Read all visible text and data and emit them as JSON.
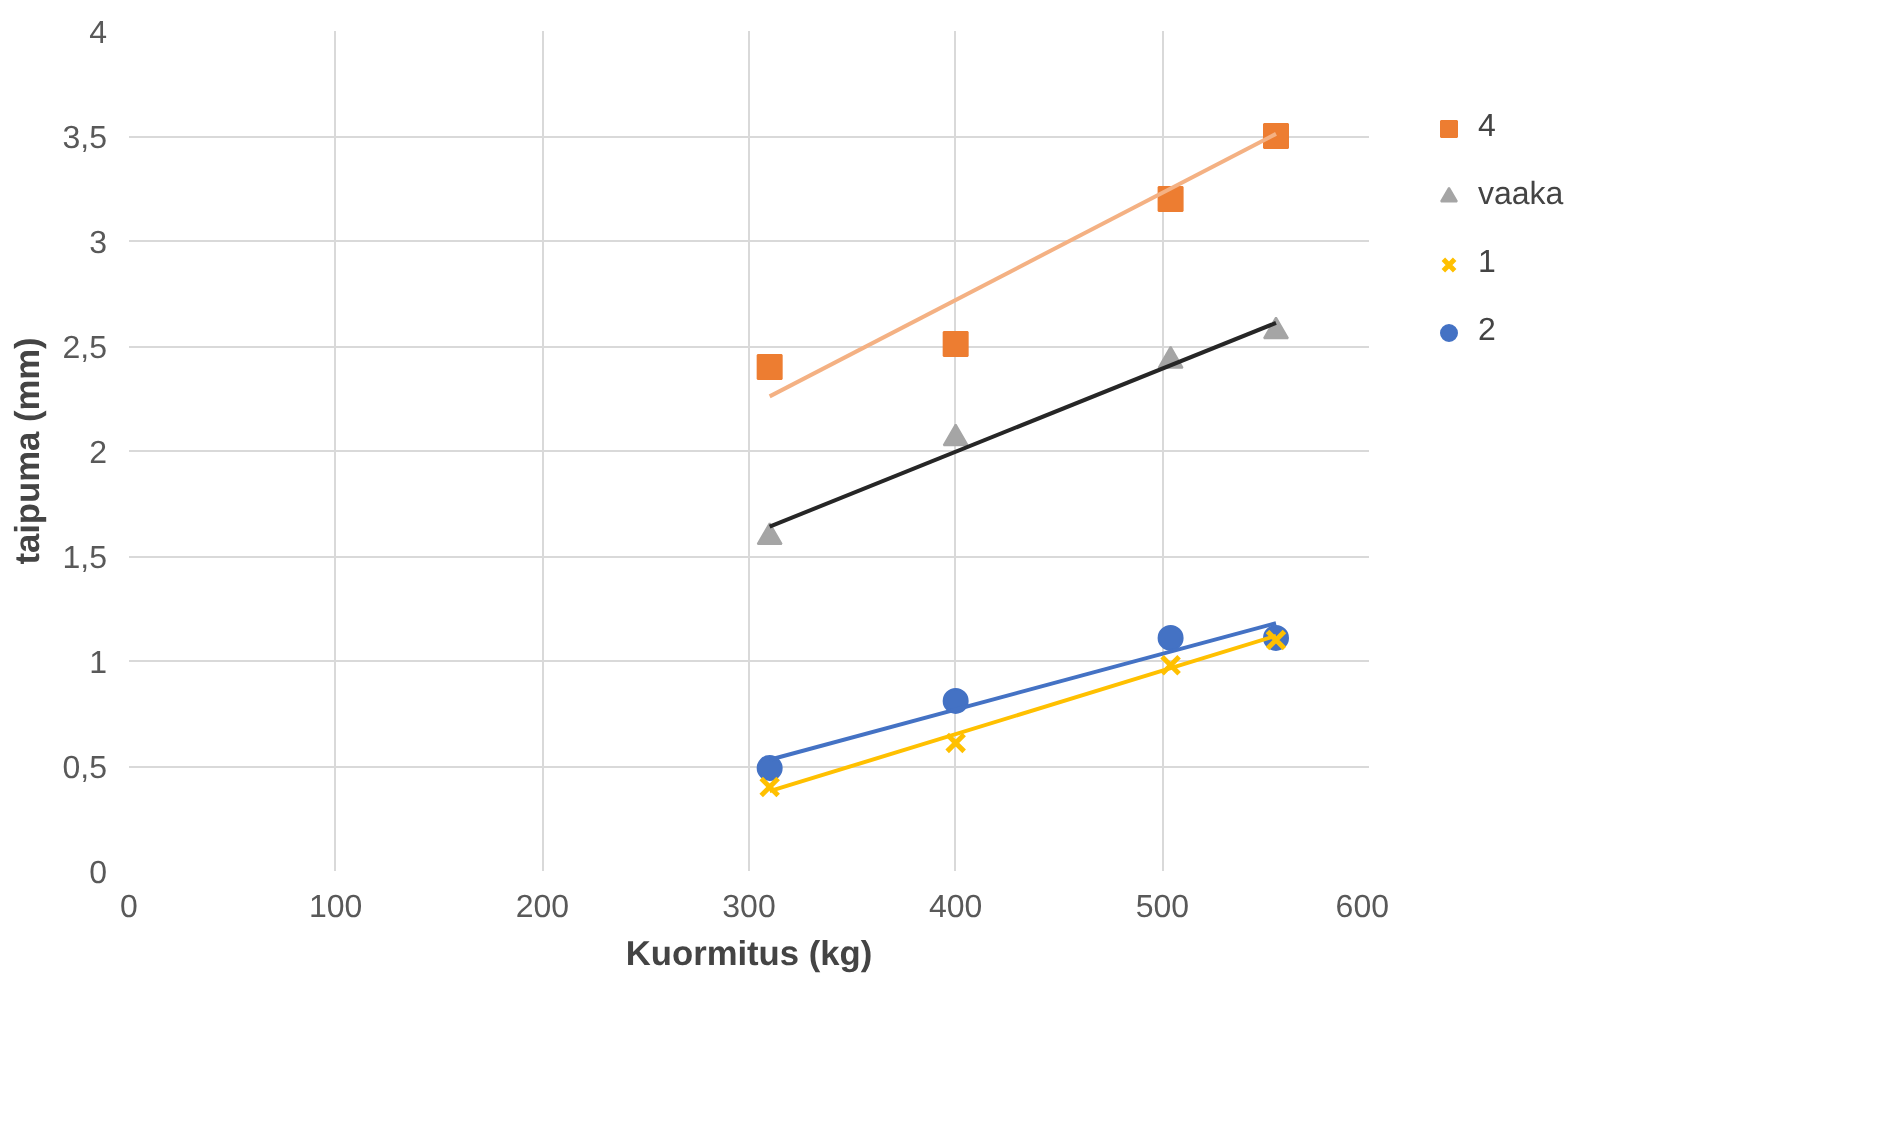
{
  "chart_data": {
    "type": "scatter",
    "xlabel": "Kuormitus (kg)",
    "ylabel": "taipuma (mm)",
    "xlim": [
      0,
      600
    ],
    "xticks": [
      0,
      100,
      200,
      300,
      400,
      500,
      600
    ],
    "ylim": [
      0,
      4
    ],
    "yticks": [
      0,
      {
        "value": 0.5,
        "label": "0,5"
      },
      1,
      {
        "value": 1.5,
        "label": "1,5"
      },
      2,
      {
        "value": 2.5,
        "label": "2,5"
      },
      3,
      {
        "value": 3.5,
        "label": "3,5"
      },
      4
    ],
    "grid": true,
    "legend": "right",
    "series": [
      {
        "name": "4",
        "color": "#ed7d31",
        "marker": "square",
        "x": [
          310,
          400,
          504,
          555
        ],
        "values": [
          2.4,
          2.51,
          3.2,
          3.5
        ]
      },
      {
        "name": "vaaka",
        "color": "#a5a5a5",
        "marker": "triangle",
        "x": [
          310,
          400,
          504,
          555
        ],
        "values": [
          1.59,
          2.06,
          2.43,
          2.57
        ]
      },
      {
        "name": "1",
        "color": "#ffc000",
        "marker": "cross",
        "x": [
          310,
          400,
          504,
          555
        ],
        "values": [
          0.4,
          0.61,
          0.98,
          1.1
        ]
      },
      {
        "name": "2",
        "color": "#4472c4",
        "marker": "circle",
        "x": [
          310,
          400,
          504,
          555
        ],
        "values": [
          0.49,
          0.81,
          1.11,
          1.11
        ]
      },
      {
        "type": "line",
        "color": "#f4b183",
        "marker": "none",
        "x": [
          310,
          555
        ],
        "values": [
          2.26,
          3.51
        ]
      },
      {
        "type": "line",
        "color": "#262626",
        "marker": "none",
        "x": [
          310,
          555
        ],
        "values": [
          1.64,
          2.61
        ]
      },
      {
        "type": "line",
        "color": "#ffc000",
        "marker": "none",
        "x": [
          310,
          555
        ],
        "values": [
          0.38,
          1.12
        ]
      },
      {
        "type": "line",
        "color": "#4472c4",
        "marker": "none",
        "x": [
          310,
          555
        ],
        "values": [
          0.53,
          1.18
        ]
      }
    ]
  }
}
